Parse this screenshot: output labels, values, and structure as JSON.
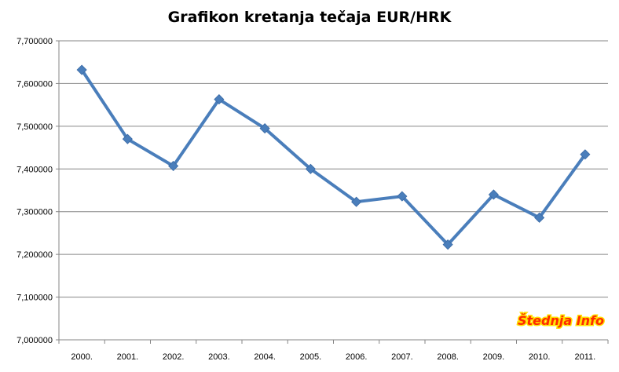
{
  "chart_data": {
    "type": "line",
    "title": "Grafikon kretanja tečaja EUR/HRK",
    "xlabel": "",
    "ylabel": "",
    "categories": [
      "2000.",
      "2001.",
      "2002.",
      "2003.",
      "2004.",
      "2005.",
      "2006.",
      "2007.",
      "2008.",
      "2009.",
      "2010.",
      "2011."
    ],
    "series": [
      {
        "values": [
          7.632,
          7.47,
          7.407,
          7.563,
          7.495,
          7.4,
          7.323,
          7.336,
          7.223,
          7.34,
          7.286,
          7.434
        ]
      }
    ],
    "ylim": [
      7.0,
      7.7
    ],
    "yticks": [
      "7,000000",
      "7,100000",
      "7,200000",
      "7,300000",
      "7,400000",
      "7,500000",
      "7,600000",
      "7,700000"
    ],
    "grid": "horizontal",
    "legend": "none",
    "marker": "diamond",
    "series_color": "#4A7EBB",
    "grid_color": "#868686"
  },
  "watermark": {
    "text": "Štednja Info",
    "fill_color": "#FF2A00",
    "outline_color": "#FFE000"
  }
}
